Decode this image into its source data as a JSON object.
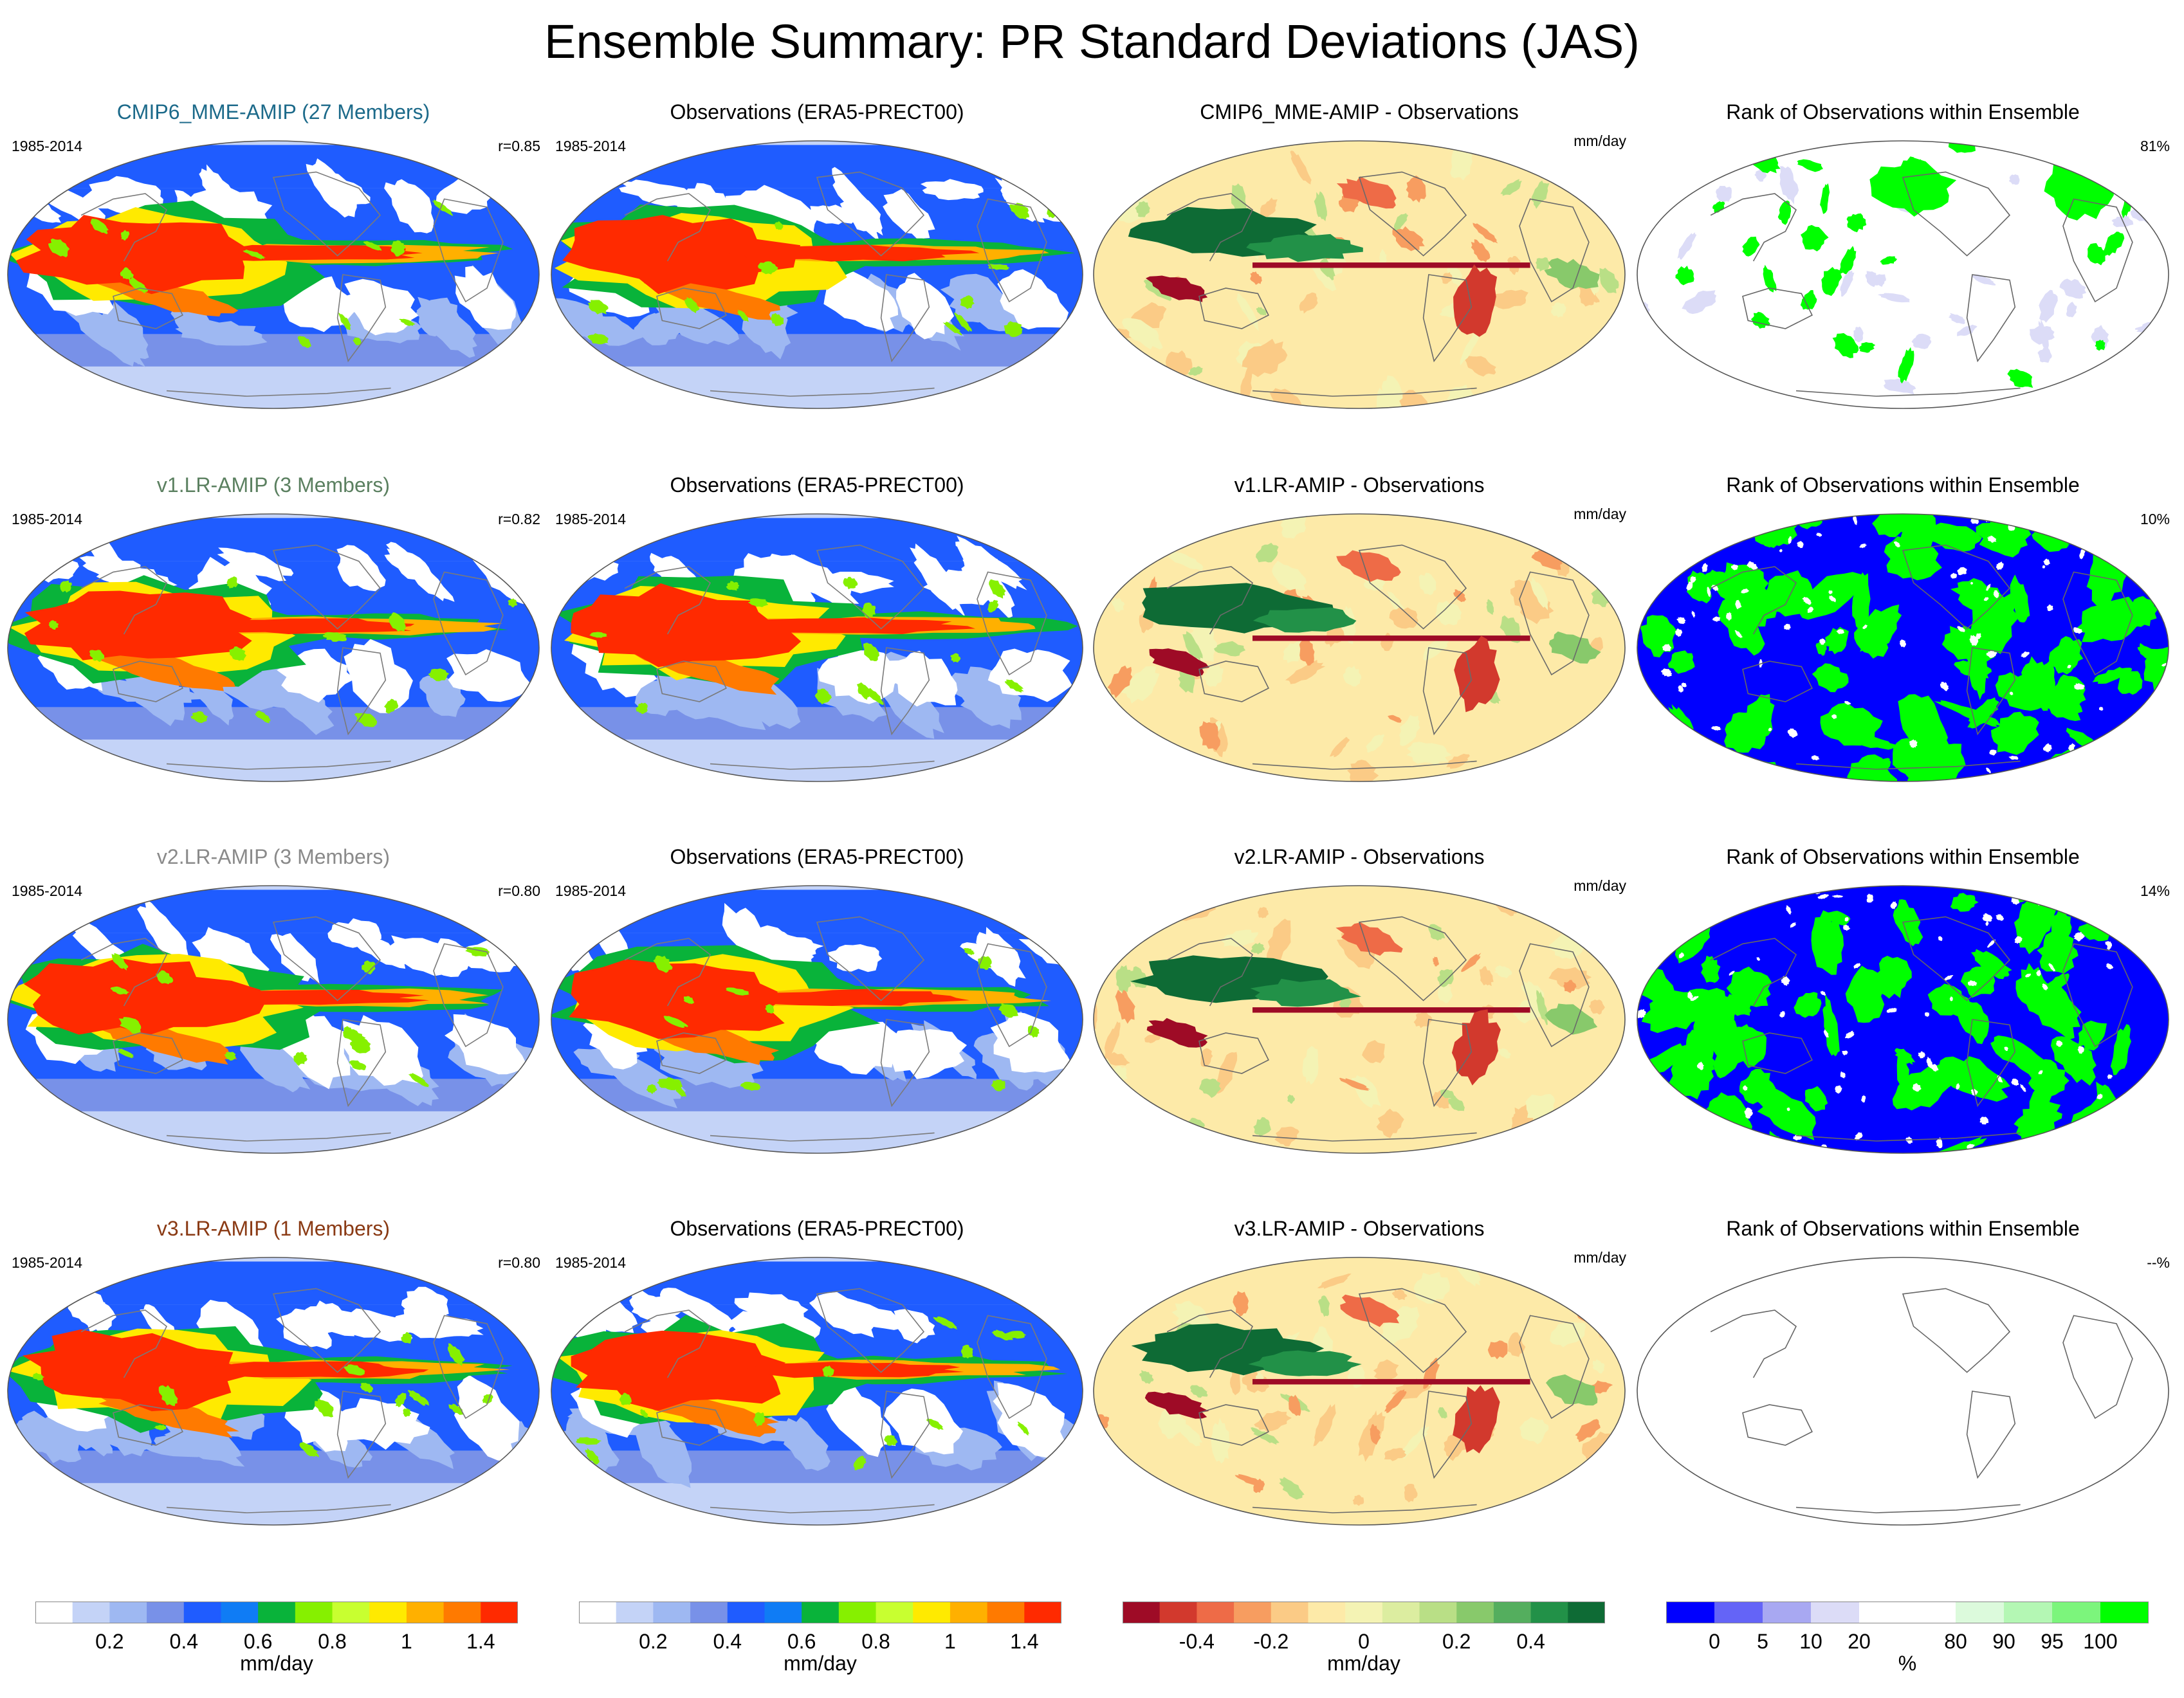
{
  "title": "Ensemble Summary: PR Standard Deviations (JAS)",
  "rows": [
    {
      "model": {
        "title": "CMIP6_MME-AMIP (27 Members)",
        "title_color": "#1c6a8a",
        "period": "1985-2014",
        "corr": "r=0.85"
      },
      "obs": {
        "title": "Observations (ERA5-PRECT00)",
        "period": "1985-2014"
      },
      "diff": {
        "title": "CMIP6_MME-AMIP - Observations",
        "units": "mm/day"
      },
      "rank": {
        "title": "Rank of Observations within Ensemble",
        "pct": "81%",
        "style": "mostly_white"
      }
    },
    {
      "model": {
        "title": "v1.LR-AMIP (3 Members)",
        "title_color": "#5b8060",
        "period": "1985-2014",
        "corr": "r=0.82"
      },
      "obs": {
        "title": "Observations (ERA5-PRECT00)",
        "period": "1985-2014"
      },
      "diff": {
        "title": "v1.LR-AMIP - Observations",
        "units": "mm/day"
      },
      "rank": {
        "title": "Rank of Observations within Ensemble",
        "pct": "10%",
        "style": "blue_green"
      }
    },
    {
      "model": {
        "title": "v2.LR-AMIP (3 Members)",
        "title_color": "#8a8a8a",
        "period": "1985-2014",
        "corr": "r=0.80"
      },
      "obs": {
        "title": "Observations (ERA5-PRECT00)",
        "period": "1985-2014"
      },
      "diff": {
        "title": "v2.LR-AMIP - Observations",
        "units": "mm/day"
      },
      "rank": {
        "title": "Rank of Observations within Ensemble",
        "pct": "14%",
        "style": "blue_green"
      }
    },
    {
      "model": {
        "title": "v3.LR-AMIP (1 Members)",
        "title_color": "#8a3a14",
        "period": "1985-2014",
        "corr": "r=0.80"
      },
      "obs": {
        "title": "Observations (ERA5-PRECT00)",
        "period": "1985-2014"
      },
      "diff": {
        "title": "v3.LR-AMIP - Observations",
        "units": "mm/day"
      },
      "rank": {
        "title": "Rank of Observations within Ensemble",
        "pct": "--%",
        "style": "empty"
      }
    }
  ],
  "colorbars": [
    {
      "name": "std-dev-model",
      "units": "mm/day",
      "colors": [
        "#ffffff",
        "#c4d3f7",
        "#9eb8f2",
        "#7891e8",
        "#1f5cff",
        "#0f7cf5",
        "#09b33a",
        "#86f000",
        "#c8ff30",
        "#ffea00",
        "#ffb000",
        "#ff7a00",
        "#ff2a00"
      ],
      "ticks": [
        "0.2",
        "0.4",
        "0.6",
        "0.8",
        "1",
        "1.4"
      ]
    },
    {
      "name": "std-dev-obs",
      "units": "mm/day",
      "colors": [
        "#ffffff",
        "#c4d3f7",
        "#9eb8f2",
        "#7891e8",
        "#1f5cff",
        "#0f7cf5",
        "#09b33a",
        "#86f000",
        "#c8ff30",
        "#ffea00",
        "#ffb000",
        "#ff7a00",
        "#ff2a00"
      ],
      "ticks": [
        "0.2",
        "0.4",
        "0.6",
        "0.8",
        "1",
        "1.4"
      ]
    },
    {
      "name": "difference",
      "units": "mm/day",
      "colors": [
        "#9e0b26",
        "#d2392d",
        "#ee6b47",
        "#f79d60",
        "#fbcb86",
        "#fdeaa8",
        "#f4f3b4",
        "#dceda0",
        "#b9df86",
        "#88c96b",
        "#54ae5e",
        "#229148",
        "#0e6b35"
      ],
      "ticks": [
        "-0.4",
        "-0.2",
        "0",
        "0.2",
        "0.4"
      ]
    },
    {
      "name": "rank",
      "units": "%",
      "colors": [
        "#0000ff",
        "#6464f7",
        "#a8a8f2",
        "#dcdcf7",
        "#ffffff",
        "#ffffff",
        "#dcfadc",
        "#b4f7b4",
        "#7cf57c",
        "#00ff00"
      ],
      "ticks": [
        "0",
        "5",
        "10",
        "20",
        "80",
        "90",
        "95",
        "100"
      ]
    }
  ],
  "chart_data": {
    "type": "heatmap",
    "title": "Ensemble Summary: PR Standard Deviations (JAS)",
    "variable": "PR standard deviation",
    "season": "JAS",
    "period": "1985-2014",
    "units": "mm/day",
    "spatial_correlation": [
      {
        "model": "CMIP6_MME-AMIP",
        "r": 0.85
      },
      {
        "model": "v1.LR-AMIP",
        "r": 0.82
      },
      {
        "model": "v2.LR-AMIP",
        "r": 0.8
      },
      {
        "model": "v3.LR-AMIP",
        "r": 0.8
      }
    ],
    "rank_percent_outside": [
      {
        "model": "CMIP6_MME-AMIP",
        "value": 81
      },
      {
        "model": "v1.LR-AMIP",
        "value": 10
      },
      {
        "model": "v2.LR-AMIP",
        "value": 14
      },
      {
        "model": "v3.LR-AMIP",
        "value": null
      }
    ],
    "std_levels": [
      0.1,
      0.2,
      0.3,
      0.4,
      0.5,
      0.6,
      0.7,
      0.8,
      0.9,
      1.0,
      1.2,
      1.4
    ],
    "diff_levels": [
      -0.5,
      -0.4,
      -0.3,
      -0.2,
      -0.1,
      0,
      0.1,
      0.2,
      0.3,
      0.4,
      0.5
    ],
    "rank_levels": [
      0,
      5,
      10,
      20,
      80,
      90,
      95,
      100
    ]
  }
}
